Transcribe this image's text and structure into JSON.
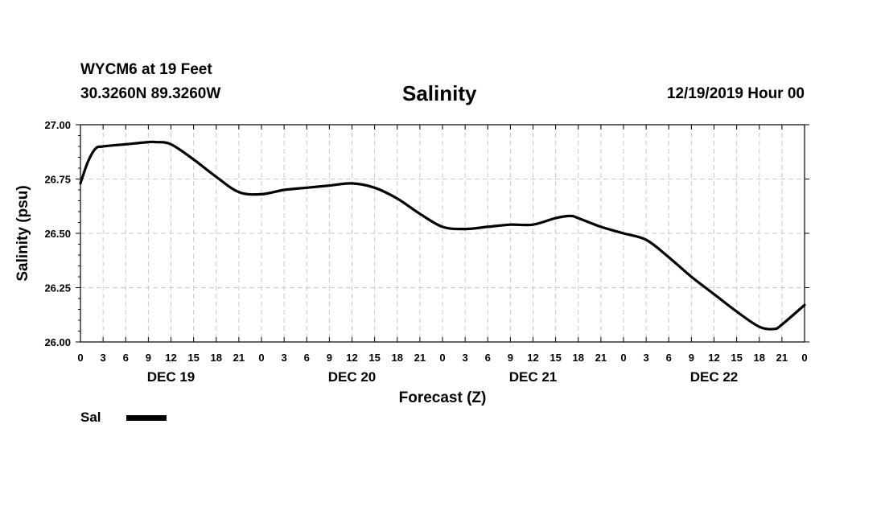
{
  "header": {
    "station": "WYCM6 at 19 Feet",
    "coords": "30.3260N 89.3260W",
    "title": "Salinity",
    "run_time": "12/19/2019 Hour 00"
  },
  "legend": {
    "label": "Sal",
    "color": "#000000"
  },
  "chart_data": {
    "type": "line",
    "title": "Salinity",
    "xlabel": "Forecast (Z)",
    "ylabel": "Salinity (psu)",
    "ylim": [
      26.0,
      27.0
    ],
    "xlim": [
      0,
      96
    ],
    "yticks": [
      "26.00",
      "26.25",
      "26.50",
      "26.75",
      "27.00"
    ],
    "xtick_labels": [
      "0",
      "3",
      "6",
      "9",
      "12",
      "15",
      "18",
      "21",
      "0",
      "3",
      "6",
      "9",
      "12",
      "15",
      "18",
      "21",
      "0",
      "3",
      "6",
      "9",
      "12",
      "15",
      "18",
      "21",
      "0",
      "3",
      "6",
      "9",
      "12",
      "15",
      "18",
      "21",
      "0"
    ],
    "day_labels": [
      {
        "label": "DEC 19",
        "hour": 12
      },
      {
        "label": "DEC 20",
        "hour": 36
      },
      {
        "label": "DEC 21",
        "hour": 60
      },
      {
        "label": "DEC 22",
        "hour": 84
      }
    ],
    "grid": true,
    "series": [
      {
        "name": "Sal",
        "x": [
          0,
          1,
          2,
          3,
          6,
          9,
          10,
          12,
          15,
          18,
          21,
          24,
          27,
          30,
          33,
          36,
          39,
          42,
          45,
          48,
          51,
          54,
          57,
          60,
          63,
          65,
          66,
          69,
          72,
          75,
          78,
          81,
          84,
          87,
          90,
          92,
          93,
          96
        ],
        "y": [
          26.73,
          26.83,
          26.89,
          26.9,
          26.91,
          26.92,
          26.92,
          26.91,
          26.84,
          26.76,
          26.69,
          26.68,
          26.7,
          26.71,
          26.72,
          26.73,
          26.71,
          26.66,
          26.59,
          26.53,
          26.52,
          26.53,
          26.54,
          26.54,
          26.57,
          26.58,
          26.57,
          26.53,
          26.5,
          26.47,
          26.39,
          26.3,
          26.22,
          26.14,
          26.07,
          26.06,
          26.08,
          26.17
        ]
      }
    ]
  }
}
